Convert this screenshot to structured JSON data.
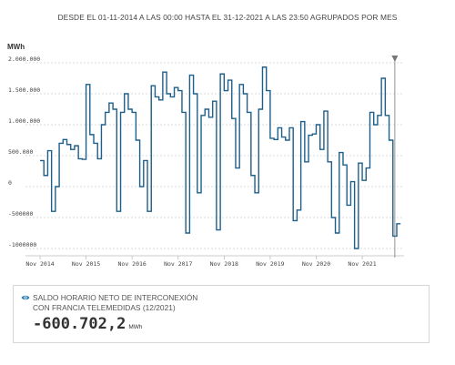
{
  "header": {
    "range_text": "DESDE EL 01-11-2014 A LAS 00:00 HASTA EL 31-12-2021 A LAS 23:50 AGRUPADOS POR MES"
  },
  "chart_data": {
    "type": "line",
    "step": true,
    "unit": "MWh",
    "ylim": [
      -1100000,
      2100000
    ],
    "y_ticks": [
      {
        "value": 2000000,
        "label": "2.000.000"
      },
      {
        "value": 1500000,
        "label": "1.500.000"
      },
      {
        "value": 1000000,
        "label": "1.000.000"
      },
      {
        "value": 500000,
        "label": "500.000"
      },
      {
        "value": 0,
        "label": "0"
      },
      {
        "value": -500000,
        "label": "-500000"
      },
      {
        "value": -1000000,
        "label": "-1000000"
      }
    ],
    "x_ticks": [
      "Nov 2014",
      "Nov 2015",
      "Nov 2016",
      "Nov 2017",
      "Nov 2018",
      "Nov 2019",
      "Nov 2020",
      "Nov 2021"
    ],
    "grid": true,
    "line_color": "#1d5f8a",
    "start": "2014-11",
    "values": [
      420000,
      180000,
      580000,
      -400000,
      0,
      700000,
      760000,
      680000,
      600000,
      660000,
      450000,
      440000,
      1650000,
      840000,
      700000,
      450000,
      1000000,
      1200000,
      1350000,
      1250000,
      -400000,
      1200000,
      1500000,
      1250000,
      1200000,
      750000,
      0,
      420000,
      -400000,
      1630000,
      1450000,
      1400000,
      1850000,
      1500000,
      1450000,
      1600000,
      1550000,
      1200000,
      -750000,
      1800000,
      1500000,
      -100000,
      1150000,
      1250000,
      1120000,
      1380000,
      -700000,
      1820000,
      1550000,
      1720000,
      1100000,
      300000,
      1650000,
      1500000,
      1200000,
      180000,
      -100000,
      1250000,
      1930000,
      1550000,
      780000,
      760000,
      950000,
      800000,
      750000,
      950000,
      -550000,
      -380000,
      1050000,
      400000,
      830000,
      850000,
      1000000,
      600000,
      1220000,
      400000,
      -500000,
      -750000,
      550000,
      350000,
      -300000,
      80000,
      -1000000,
      380000,
      100000,
      300000,
      1200000,
      1000000,
      1150000,
      1750000,
      1150000,
      750000,
      -800000,
      -600702
    ]
  },
  "info": {
    "title_line1": "SALDO HORARIO NETO DE INTERCONEXIÓN",
    "title_line2": "CON FRANCIA TELEMEDIDAS (12/2021)",
    "value": "-600.702,2",
    "unit": "MWh",
    "icon": "eye-icon"
  }
}
